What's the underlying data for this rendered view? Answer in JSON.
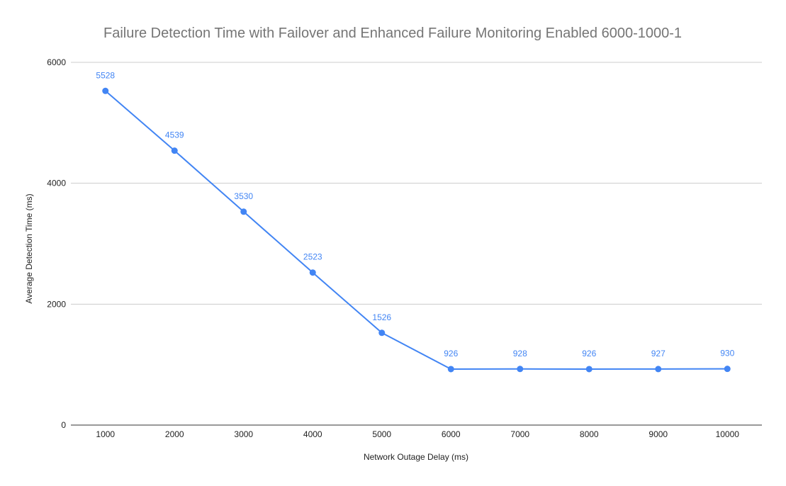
{
  "chart_data": {
    "type": "line",
    "title": "Failure Detection Time with Failover and Enhanced Failure Monitoring Enabled 6000-1000-1",
    "xlabel": "Network Outage Delay (ms)",
    "ylabel": "Average Detection Time (ms)",
    "categories": [
      "1000",
      "2000",
      "3000",
      "4000",
      "5000",
      "6000",
      "7000",
      "8000",
      "9000",
      "10000"
    ],
    "series": [
      {
        "values": [
          5528,
          4539,
          3530,
          2523,
          1526,
          926,
          928,
          926,
          927,
          930
        ],
        "color": "#4285f4"
      }
    ],
    "ylim": [
      0,
      6000
    ],
    "yticks": [
      "0",
      "2000",
      "4000",
      "6000"
    ],
    "data_labels": [
      "5528",
      "4539",
      "3530",
      "2523",
      "1526",
      "926",
      "928",
      "926",
      "927",
      "930"
    ],
    "grid": true,
    "legend": "none",
    "colors": {
      "line": "#4285f4",
      "label": "#4285f4",
      "grid": "#cccccc",
      "axis": "#333333",
      "title": "#757575",
      "text": "#222222"
    }
  }
}
